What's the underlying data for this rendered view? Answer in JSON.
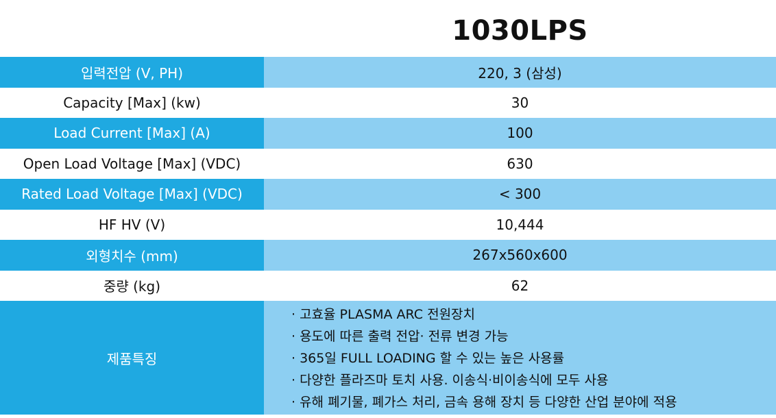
{
  "header": {
    "model": "1030LPS"
  },
  "specs": [
    {
      "label": "입력전압 (V, PH)",
      "value": "220, 3 (삼성)"
    },
    {
      "label": "Capacity [Max] (kw)",
      "value": "30"
    },
    {
      "label": "Load Current [Max] (A)",
      "value": "100"
    },
    {
      "label": "Open Load Voltage [Max] (VDC)",
      "value": "630"
    },
    {
      "label": "Rated Load Voltage [Max] (VDC)",
      "value": "< 300"
    },
    {
      "label": "HF HV (V)",
      "value": "10,444"
    },
    {
      "label": "외형치수 (mm)",
      "value": "267x560x600"
    },
    {
      "label": "중량 (kg)",
      "value": "62"
    }
  ],
  "features": {
    "label": "제품특징",
    "items": [
      "· 고효율 PLASMA ARC 전원장치",
      "· 용도에 따른 출력 전압· 전류 변경 가능",
      "· 365일 FULL LOADING 할 수 있는 높은 사용률",
      "·  다양한 플라즈마 토치 사용. 이송식·비이송식에 모두 사용",
      "·  유해 폐기물, 폐가스 처리, 금속 용해 장치 등 다양한 산업 분야에 적용"
    ]
  },
  "colors": {
    "label_shaded": "#1fa9e1",
    "value_shaded": "#8dcff2"
  }
}
